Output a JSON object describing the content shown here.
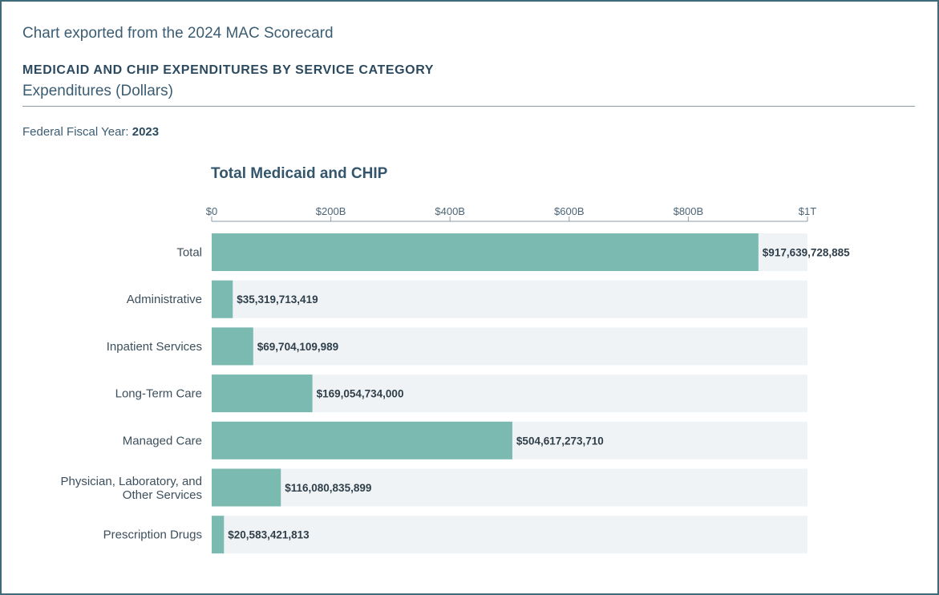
{
  "header": {
    "export_note": "Chart exported from the 2024 MAC Scorecard",
    "title": "MEDICAID AND CHIP EXPENDITURES BY SERVICE CATEGORY",
    "subtitle": "Expenditures (Dollars)",
    "filter_label": "Federal Fiscal Year:",
    "filter_value": "2023"
  },
  "colors": {
    "bar": "#7bbab1",
    "track": "#f0f3f6",
    "axis": "#8a9ea8",
    "frame": "#3d6b7a"
  },
  "chart_data": {
    "type": "bar",
    "orientation": "horizontal",
    "title": "Total Medicaid and CHIP",
    "xlim": [
      0,
      1000000000000
    ],
    "ticks": [
      0,
      200000000000,
      400000000000,
      600000000000,
      800000000000,
      1000000000000
    ],
    "tick_labels": [
      "$0",
      "$200B",
      "$400B",
      "$600B",
      "$800B",
      "$1T"
    ],
    "axis_position": "top",
    "categories": [
      [
        "Total"
      ],
      [
        "Administrative"
      ],
      [
        "Inpatient Services"
      ],
      [
        "Long-Term Care"
      ],
      [
        "Managed Care"
      ],
      [
        "Physician, Laboratory, and",
        "Other Services"
      ],
      [
        "Prescription Drugs"
      ]
    ],
    "values": [
      917639728885,
      35319713419,
      69704109989,
      169054734000,
      504617273710,
      116080835899,
      20583421813
    ],
    "value_labels": [
      "$917,639,728,885",
      "$35,319,713,419",
      "$69,704,109,989",
      "$169,054,734,000",
      "$504,617,273,710",
      "$116,080,835,899",
      "$20,583,421,813"
    ]
  }
}
